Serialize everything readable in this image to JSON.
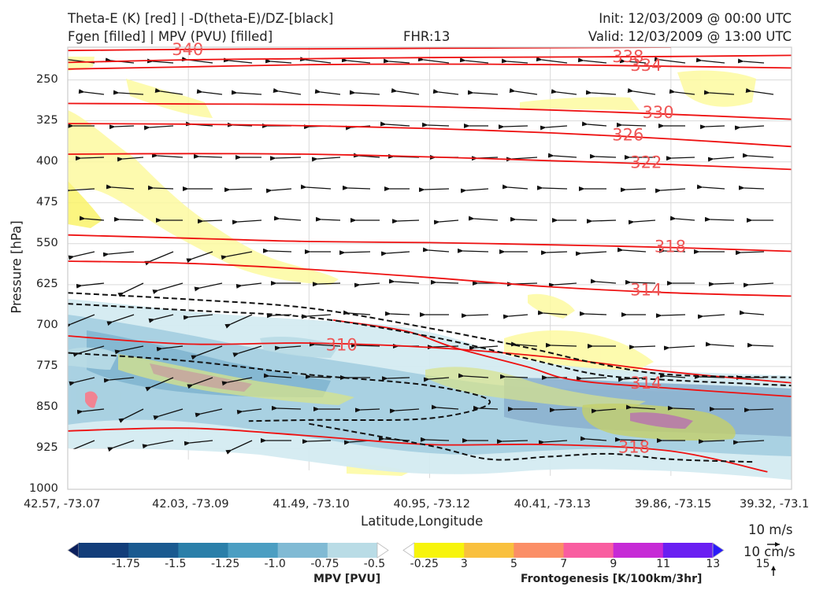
{
  "header": {
    "title_line1": "Theta-E (K) [red] | -D(theta-E)/DZ-[black]",
    "title_line2": "Fgen [filled] | MPV (PVU) [filled]",
    "fhr": "FHR:13",
    "init": "Init: 12/03/2009 @ 00:00 UTC",
    "valid": "Valid: 12/03/2009 @ 13:00 UTC"
  },
  "vector_key": {
    "horizontal": "10 m/s",
    "vertical": "10 cm/s"
  },
  "colorbars": {
    "mpv": {
      "label": "MPV [PVU]",
      "ticks": [
        "-1.75",
        "-1.5",
        "-1.25",
        "-1.0",
        "-0.75",
        "-0.5",
        "-0.25"
      ],
      "colors": [
        "#0b1f5c",
        "#123d7a",
        "#1a5a90",
        "#2a7fa9",
        "#4b9ec2",
        "#80bad4",
        "#b9dce6",
        "#ffffff"
      ]
    },
    "fgen": {
      "label": "Frontogenesis [K/100km/3hr]",
      "ticks": [
        "3",
        "5",
        "7",
        "9",
        "11",
        "13",
        "15"
      ],
      "colors": [
        "#ffffff",
        "#f7f40b",
        "#f9c03d",
        "#fb8e66",
        "#f95da0",
        "#c62ad6",
        "#6a1ff2",
        "#2a1bf9"
      ]
    }
  },
  "chart_data": {
    "type": "cross-section",
    "xlabel": "Latitude,Longitude",
    "ylabel": "Pressure [hPa]",
    "x_ticks": [
      "42.57, -73.07",
      "42.03, -73.09",
      "41.49, -73.10",
      "40.95, -73.12",
      "40.41, -73.13",
      "39.86, -73.15",
      "39.32, -73.1"
    ],
    "y_ticks": [
      "250",
      "325",
      "400",
      "475",
      "550",
      "625",
      "700",
      "775",
      "850",
      "925",
      "1000"
    ],
    "ylim": [
      1000,
      190
    ],
    "grid": true,
    "theta_e_contours": [
      {
        "label": "340",
        "values": [
          [
            0,
            196
          ],
          [
            1,
            194
          ],
          [
            2,
            193
          ],
          [
            3,
            192
          ],
          [
            4,
            191
          ],
          [
            5,
            190
          ]
        ]
      },
      {
        "label": "338",
        "values": [
          [
            0,
            218
          ],
          [
            1,
            213
          ],
          [
            2,
            211
          ],
          [
            3,
            209
          ],
          [
            4,
            208
          ],
          [
            5,
            207
          ],
          [
            6,
            205
          ]
        ]
      },
      {
        "label": "334",
        "values": [
          [
            0,
            230
          ],
          [
            1,
            226
          ],
          [
            2,
            222
          ],
          [
            3,
            221
          ],
          [
            4,
            222
          ],
          [
            5,
            225
          ],
          [
            6,
            228
          ]
        ]
      },
      {
        "label": "330",
        "values": [
          [
            0,
            293
          ],
          [
            1,
            294
          ],
          [
            2,
            295
          ],
          [
            3,
            299
          ],
          [
            4,
            305
          ],
          [
            5,
            313
          ],
          [
            6,
            322
          ]
        ]
      },
      {
        "label": "326",
        "values": [
          [
            0,
            330
          ],
          [
            1,
            331
          ],
          [
            2,
            334
          ],
          [
            3,
            339
          ],
          [
            4,
            347
          ],
          [
            5,
            358
          ],
          [
            6,
            372
          ]
        ]
      },
      {
        "label": "322",
        "values": [
          [
            0,
            386
          ],
          [
            1,
            385
          ],
          [
            2,
            386
          ],
          [
            3,
            391
          ],
          [
            4,
            398
          ],
          [
            5,
            405
          ],
          [
            6,
            414
          ]
        ]
      },
      {
        "label": "318",
        "values": [
          [
            0,
            534
          ],
          [
            1,
            540
          ],
          [
            2,
            546
          ],
          [
            3,
            548
          ],
          [
            4,
            552
          ],
          [
            5,
            557
          ],
          [
            6,
            564
          ]
        ]
      },
      {
        "label": "314",
        "values": [
          [
            0,
            582
          ],
          [
            1,
            586
          ],
          [
            2,
            597
          ],
          [
            3,
            612
          ],
          [
            4,
            629
          ],
          [
            5,
            640
          ],
          [
            6,
            646
          ]
        ]
      },
      {
        "label": "310",
        "values": [
          [
            0,
            719
          ],
          [
            1,
            734
          ],
          [
            2,
            732
          ],
          [
            3,
            740
          ],
          [
            4,
            758
          ],
          [
            5,
            785
          ],
          [
            6,
            805
          ]
        ]
      },
      {
        "label": "314",
        "values": [
          [
            2.2,
            690
          ],
          [
            2.8,
            710
          ],
          [
            3.2,
            740
          ],
          [
            3.8,
            775
          ],
          [
            4.2,
            800
          ],
          [
            5,
            815
          ],
          [
            6,
            830
          ]
        ]
      },
      {
        "label": "318",
        "values": [
          [
            0,
            893
          ],
          [
            1,
            888
          ],
          [
            2,
            902
          ],
          [
            3,
            918
          ],
          [
            4,
            918
          ],
          [
            5,
            930
          ],
          [
            5.8,
            968
          ]
        ]
      }
    ],
    "dthetae_dz_contours": [
      {
        "values": [
          [
            0,
            640
          ],
          [
            1,
            652
          ],
          [
            2,
            668
          ],
          [
            3,
            705
          ],
          [
            3.8,
            740
          ],
          [
            4.4,
            770
          ],
          [
            5,
            790
          ],
          [
            6,
            795
          ]
        ]
      },
      {
        "values": [
          [
            0,
            660
          ],
          [
            1,
            672
          ],
          [
            2,
            685
          ],
          [
            3,
            720
          ],
          [
            3.8,
            760
          ],
          [
            4.4,
            790
          ],
          [
            5,
            800
          ],
          [
            6,
            810
          ]
        ]
      },
      {
        "values": [
          [
            0,
            750
          ],
          [
            1,
            765
          ],
          [
            2,
            790
          ],
          [
            3,
            810
          ],
          [
            3.5,
            840
          ],
          [
            3,
            870
          ],
          [
            2,
            873
          ],
          [
            1.5,
            875
          ]
        ]
      },
      {
        "values": [
          [
            2,
            880
          ],
          [
            3,
            920
          ],
          [
            3.5,
            945
          ],
          [
            4,
            940
          ],
          [
            4.5,
            935
          ],
          [
            5,
            945
          ],
          [
            5.7,
            950
          ]
        ]
      }
    ]
  }
}
